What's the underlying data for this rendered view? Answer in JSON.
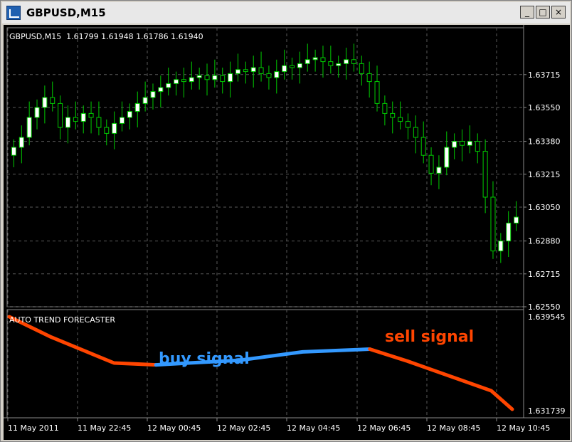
{
  "window": {
    "title": "GBPUSD,M15",
    "min_glyph": "_",
    "max_glyph": "□",
    "close_glyph": "×"
  },
  "chart_header": "GBPUSD,M15  1.61799 1.61948 1.61786 1.61940",
  "indicator_header": "AUTO TREND FORECASTER",
  "annotations": {
    "buy": "buy signal",
    "sell": "sell signal"
  },
  "colors": {
    "background": "#000000",
    "grid": "#5a5a5a",
    "bull_candle": "#ffffff",
    "wick": "#00cc00",
    "buy_line": "#3399ff",
    "sell_line": "#ff4500",
    "text": "#ffffff"
  },
  "chart_data": [
    {
      "type": "candlestick",
      "title": "GBPUSD,M15",
      "ylim": [
        1.6255,
        1.6395
      ],
      "y_ticks": [
        "1.63715",
        "1.63550",
        "1.63380",
        "1.63215",
        "1.63050",
        "1.62880",
        "1.62715",
        "1.62550"
      ],
      "x_ticks": [
        "11 May 2011",
        "11 May 22:45",
        "12 May 00:45",
        "12 May 02:45",
        "12 May 04:45",
        "12 May 06:45",
        "12 May 08:45",
        "12 May 10:45"
      ]
    },
    {
      "type": "line",
      "title": "AUTO TREND FORECASTER",
      "y_ticks": [
        "1.639545",
        "1.631739"
      ],
      "series": [
        {
          "name": "sell",
          "color": "#ff4500",
          "points": [
            [
              0,
              100
            ],
            [
              10,
              78
            ],
            [
              25,
              50
            ],
            [
              35,
              48
            ]
          ]
        },
        {
          "name": "buy",
          "color": "#3399ff",
          "points": [
            [
              35,
              48
            ],
            [
              55,
              53
            ],
            [
              70,
              62
            ],
            [
              86,
              65
            ]
          ]
        },
        {
          "name": "sell",
          "color": "#ff4500",
          "points": [
            [
              86,
              65
            ],
            [
              95,
              52
            ],
            [
              115,
              20
            ],
            [
              120,
              0
            ]
          ]
        }
      ]
    }
  ]
}
